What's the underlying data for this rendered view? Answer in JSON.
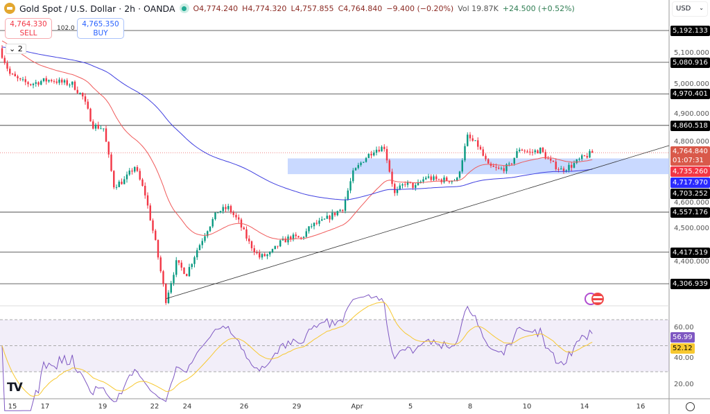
{
  "header": {
    "symbol": "Gold Spot / U.S. Dollar · 2h · OANDA",
    "open": "O4,774.240",
    "high": "H4,774.320",
    "low": "L4,757.855",
    "close": "C4,764.840",
    "change": "−9.400 (−0.20%)",
    "volume": "Vol 19.87K",
    "extra_change": "+24.500 (+0.52%)"
  },
  "trade": {
    "sell_price": "4,764.330",
    "sell_label": "SELL",
    "spread": "102.0",
    "buy_price": "4,765.350",
    "buy_label": "BUY"
  },
  "legend_collapse": "2",
  "currency": "USD",
  "colors": {
    "up": "#089981",
    "down": "#f23645",
    "ma_fast": "#f05a5a",
    "ma_slow": "#3f3fe0",
    "zone": "#bcd0ff",
    "rsi": "#7e57c2",
    "rsi_ma": "#f7c830"
  },
  "chart_data": {
    "type": "candlestick",
    "symbol": "XAUUSD",
    "interval": "2h",
    "close_path": [
      5130,
      5040,
      5015,
      5005,
      5015,
      5020,
      5010,
      5005,
      4960,
      4860,
      4850,
      4650,
      4668,
      4717,
      4620,
      4450,
      4250,
      4380,
      4342,
      4426,
      4499,
      4560,
      4572,
      4523,
      4450,
      4400,
      4410,
      4450,
      4470,
      4465,
      4510,
      4523,
      4547,
      4572,
      4693,
      4741,
      4775,
      4785,
      4620,
      4660,
      4645,
      4680,
      4670,
      4670,
      4670,
      4820,
      4790,
      4717,
      4705,
      4717,
      4780,
      4765,
      4775,
      4730,
      4705,
      4720,
      4745,
      4764.84
    ],
    "price_ticks": [
      "5,100.000",
      "5,000.000",
      "4,900.000",
      "4,800.000",
      "4,600.000",
      "4,500.000",
      "4,400.000"
    ],
    "horizontal_levels": [
      {
        "label": "5,192.133",
        "value": 5192.133
      },
      {
        "label": "5,080.916",
        "value": 5080.916
      },
      {
        "label": "4,970.401",
        "value": 4970.401
      },
      {
        "label": "4,860.518",
        "value": 4860.518
      },
      {
        "label": "4,557.176",
        "value": 4557.176
      },
      {
        "label": "4,417.519",
        "value": 4417.519
      },
      {
        "label": "4,306.939",
        "value": 4306.939
      }
    ],
    "price_badges": {
      "last": "4,764.840",
      "countdown": "01:07:31",
      "ma_fast": "4,735.260",
      "ma_slow": "4,717.970",
      "zone_low": "4,703.252"
    },
    "zone": {
      "low": 4690,
      "high": 4745,
      "start": "Mar 28"
    },
    "trendline": {
      "start": 4255,
      "end": 4790
    },
    "rsi": {
      "levels": [
        70,
        50,
        30
      ],
      "ticks": [
        "60.00",
        "40.00",
        "20.00"
      ],
      "value": "56.99",
      "ma_value": "52.12"
    },
    "time_labels": [
      "15",
      "17",
      "19",
      "22",
      "24",
      "26",
      "29",
      "Apr",
      "5",
      "8",
      "10",
      "14",
      "16"
    ]
  }
}
